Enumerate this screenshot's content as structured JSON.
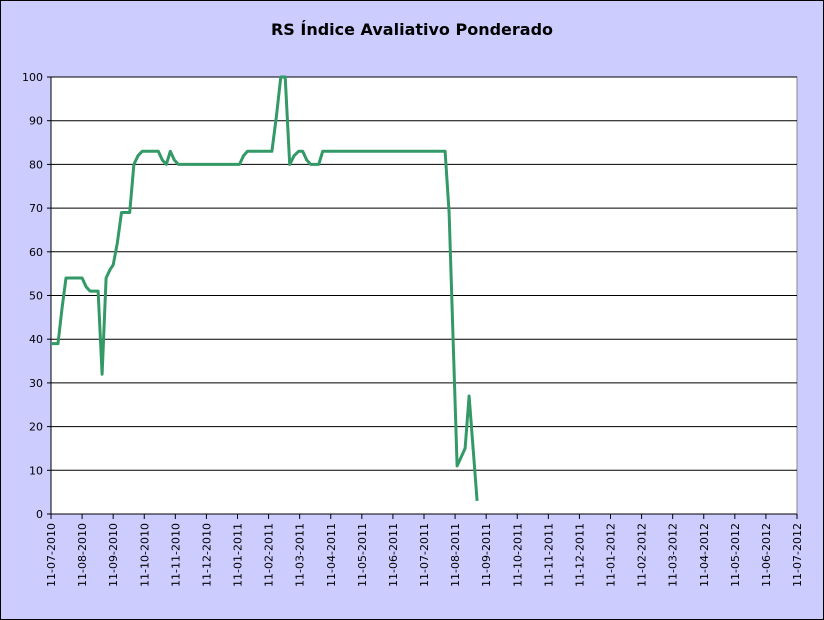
{
  "chart_data": {
    "type": "line",
    "title": "RS Índice Avaliativo Ponderado",
    "xlabel": "",
    "ylabel": "",
    "ylim": [
      0,
      100
    ],
    "y_ticks": [
      0,
      10,
      20,
      30,
      40,
      50,
      60,
      70,
      80,
      90,
      100
    ],
    "x_tick_labels": [
      "11-07-2010",
      "11-08-2010",
      "11-09-2010",
      "11-10-2010",
      "11-11-2010",
      "11-12-2010",
      "11-01-2011",
      "11-02-2011",
      "11-03-2011",
      "11-04-2011",
      "11-05-2011",
      "11-06-2011",
      "11-07-2011",
      "11-08-2011",
      "11-09-2011",
      "11-10-2011",
      "11-11-2011",
      "11-12-2011",
      "11-01-2012",
      "11-02-2012",
      "11-03-2012",
      "11-04-2012",
      "11-05-2012",
      "11-06-2012",
      "11-07-2012"
    ],
    "grid": true,
    "legend": "none",
    "colors": {
      "line": "#339966",
      "plot_bg": "#ffffff",
      "frame_bg": "#ccccff",
      "grid": "#000000"
    },
    "series": [
      {
        "x": [
          "2010-07-11",
          "2010-07-15",
          "2010-07-18",
          "2010-07-22",
          "2010-07-26",
          "2010-07-30",
          "2010-08-03",
          "2010-08-07",
          "2010-08-11",
          "2010-08-15",
          "2010-08-19",
          "2010-08-23",
          "2010-08-27",
          "2010-08-31",
          "2010-09-04",
          "2010-09-08",
          "2010-09-11",
          "2010-09-15",
          "2010-09-19",
          "2010-09-23",
          "2010-09-27",
          "2010-10-01",
          "2010-10-05",
          "2010-10-09",
          "2010-10-13",
          "2010-10-17",
          "2010-10-21",
          "2010-10-25",
          "2010-10-29",
          "2010-11-02",
          "2010-11-06",
          "2010-11-10",
          "2010-11-14",
          "2010-11-18",
          "2010-11-22",
          "2010-11-26",
          "2010-11-30",
          "2010-12-04",
          "2010-12-08",
          "2010-12-12",
          "2010-12-16",
          "2010-12-20",
          "2010-12-24",
          "2010-12-28",
          "2011-01-01",
          "2011-01-05",
          "2011-01-09",
          "2011-01-13",
          "2011-01-17",
          "2011-01-21",
          "2011-01-25",
          "2011-01-29",
          "2011-02-02",
          "2011-02-06",
          "2011-02-10",
          "2011-02-14",
          "2011-02-18",
          "2011-02-22",
          "2011-02-26",
          "2011-03-02",
          "2011-03-06",
          "2011-03-10",
          "2011-03-14",
          "2011-03-18",
          "2011-03-22",
          "2011-03-26",
          "2011-03-30",
          "2011-04-03",
          "2011-04-07",
          "2011-04-11",
          "2011-04-15",
          "2011-04-19",
          "2011-04-23",
          "2011-04-27",
          "2011-05-01",
          "2011-05-05",
          "2011-05-09",
          "2011-05-13",
          "2011-05-17",
          "2011-05-21",
          "2011-05-25",
          "2011-05-29",
          "2011-06-02",
          "2011-06-06",
          "2011-06-10",
          "2011-06-14",
          "2011-06-18",
          "2011-06-22",
          "2011-06-26",
          "2011-06-30",
          "2011-07-04",
          "2011-07-08",
          "2011-07-12",
          "2011-07-16",
          "2011-07-20",
          "2011-07-24",
          "2011-07-28",
          "2011-08-01",
          "2011-08-05",
          "2011-08-09",
          "2011-08-13",
          "2011-08-17",
          "2011-08-21",
          "2011-08-25",
          "2011-08-29",
          "2011-09-02"
        ],
        "values": [
          39,
          39,
          39,
          47,
          54,
          54,
          54,
          54,
          54,
          52,
          51,
          51,
          51,
          32,
          54,
          56,
          57,
          62,
          69,
          69,
          69,
          80,
          82,
          83,
          83,
          83,
          83,
          83,
          81,
          80,
          83,
          81,
          80,
          80,
          80,
          80,
          80,
          80,
          80,
          80,
          80,
          80,
          80,
          80,
          80,
          80,
          80,
          80,
          82,
          83,
          83,
          83,
          83,
          83,
          83,
          83,
          91,
          100,
          100,
          80,
          82,
          83,
          83,
          81,
          80,
          80,
          80,
          83,
          83,
          83,
          83,
          83,
          83,
          83,
          83,
          83,
          83,
          83,
          83,
          83,
          83,
          83,
          83,
          83,
          83,
          83,
          83,
          83,
          83,
          83,
          83,
          83,
          83,
          83,
          83,
          83,
          83,
          83,
          69,
          40,
          11,
          13,
          15,
          27,
          15,
          3
        ]
      }
    ]
  }
}
